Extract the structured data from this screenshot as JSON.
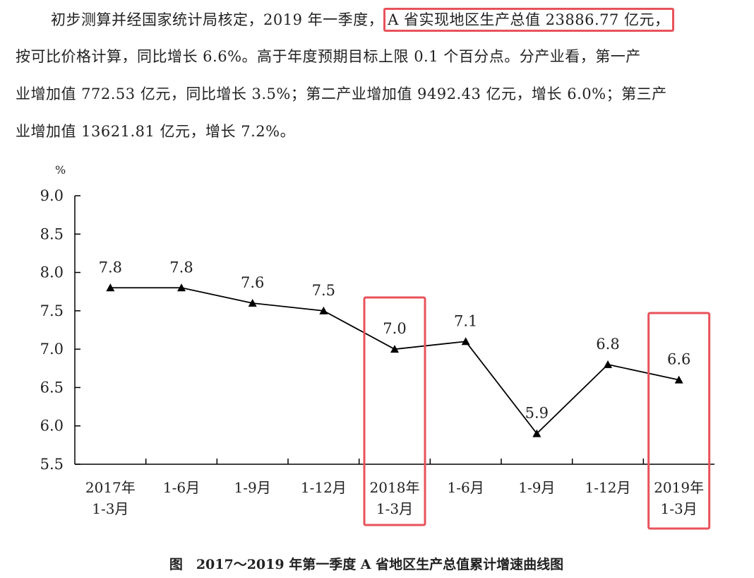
{
  "paragraph": {
    "line1_prefix": "初步测算并经国家统计局核定，2019 年一季度，",
    "line1_highlight": "A 省实现地区生产总值 23886.77 亿元，",
    "line2": "按可比价格计算，同比增长 6.6%。高于年度预期目标上限 0.1 个百分点。分产业看，第一产",
    "line3": "业增加值 772.53 亿元，同比增长 3.5%；第二产业增加值 9492.43 亿元，增长 6.0%；第三产",
    "line4": "业增加值 13621.81 亿元，增长 7.2%。"
  },
  "highlight_color": "#e8525a",
  "chart_data": {
    "type": "line",
    "title": "图　2017～2019 年第一季度 A 省地区生产总值累计增速曲线图",
    "ylabel": "%",
    "xlabel": "",
    "ylim": [
      5.5,
      9.0
    ],
    "yticks": [
      "9.0",
      "8.5",
      "8.0",
      "7.5",
      "7.0",
      "6.5",
      "6.0",
      "5.5"
    ],
    "categories": [
      [
        "2017年",
        "1-3月"
      ],
      [
        "1-6月"
      ],
      [
        "1-9月"
      ],
      [
        "1-12月"
      ],
      [
        "2018年",
        "1-3月"
      ],
      [
        "1-6月"
      ],
      [
        "1-9月"
      ],
      [
        "1-12月"
      ],
      [
        "2019年",
        "1-3月"
      ]
    ],
    "values": [
      7.8,
      7.8,
      7.6,
      7.5,
      7.0,
      7.1,
      5.9,
      6.8,
      6.6
    ],
    "data_labels": [
      "7.8",
      "7.8",
      "7.6",
      "7.5",
      "7.0",
      "7.1",
      "5.9",
      "6.8",
      "6.6"
    ],
    "marker": "triangle",
    "highlighted_categories": [
      4,
      8
    ],
    "grid": false
  }
}
